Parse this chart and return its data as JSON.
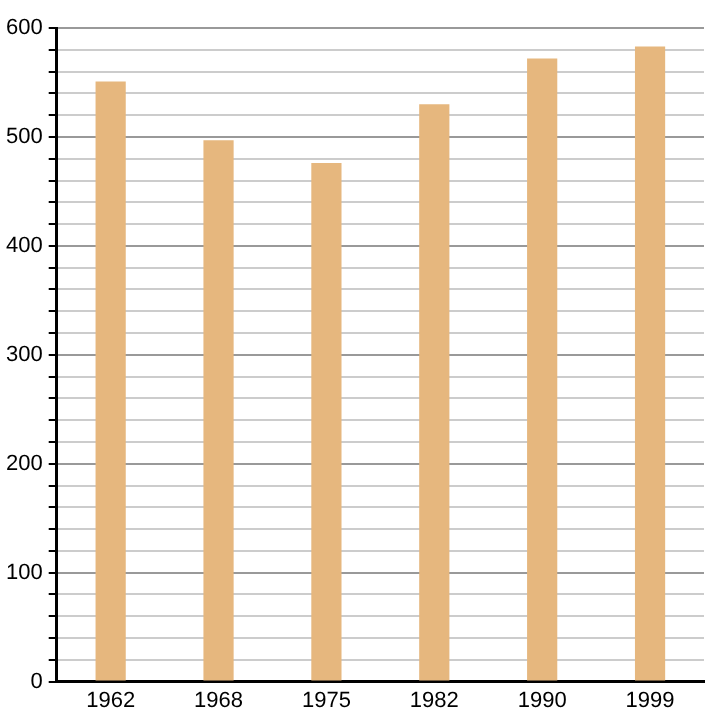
{
  "chart_data": {
    "type": "bar",
    "categories": [
      "1962",
      "1968",
      "1975",
      "1982",
      "1990",
      "1999"
    ],
    "values": [
      551,
      497,
      476,
      530,
      572,
      583
    ],
    "color": "#e6b77e",
    "ylim": [
      0,
      600
    ],
    "yticks": [
      0,
      {
        "value": 20,
        "label": null
      },
      {
        "value": 40,
        "label": null
      },
      {
        "value": 60,
        "label": null
      },
      {
        "value": 80,
        "label": null
      },
      100,
      {
        "value": 120,
        "label": null
      },
      {
        "value": 140,
        "label": null
      },
      {
        "value": 160,
        "label": null
      },
      {
        "value": 180,
        "label": null
      },
      200,
      {
        "value": 220,
        "label": null
      },
      {
        "value": 240,
        "label": null
      },
      {
        "value": 260,
        "label": null
      },
      {
        "value": 280,
        "label": null
      },
      300,
      {
        "value": 320,
        "label": null
      },
      {
        "value": 340,
        "label": null
      },
      {
        "value": 360,
        "label": null
      },
      {
        "value": 380,
        "label": null
      },
      400,
      {
        "value": 420,
        "label": null
      },
      {
        "value": 440,
        "label": null
      },
      {
        "value": 460,
        "label": null
      },
      {
        "value": 480,
        "label": null
      },
      500,
      {
        "value": 520,
        "label": null
      },
      {
        "value": 540,
        "label": null
      },
      {
        "value": 560,
        "label": null
      },
      {
        "value": 580,
        "label": null
      },
      600
    ],
    "grid": "y"
  }
}
